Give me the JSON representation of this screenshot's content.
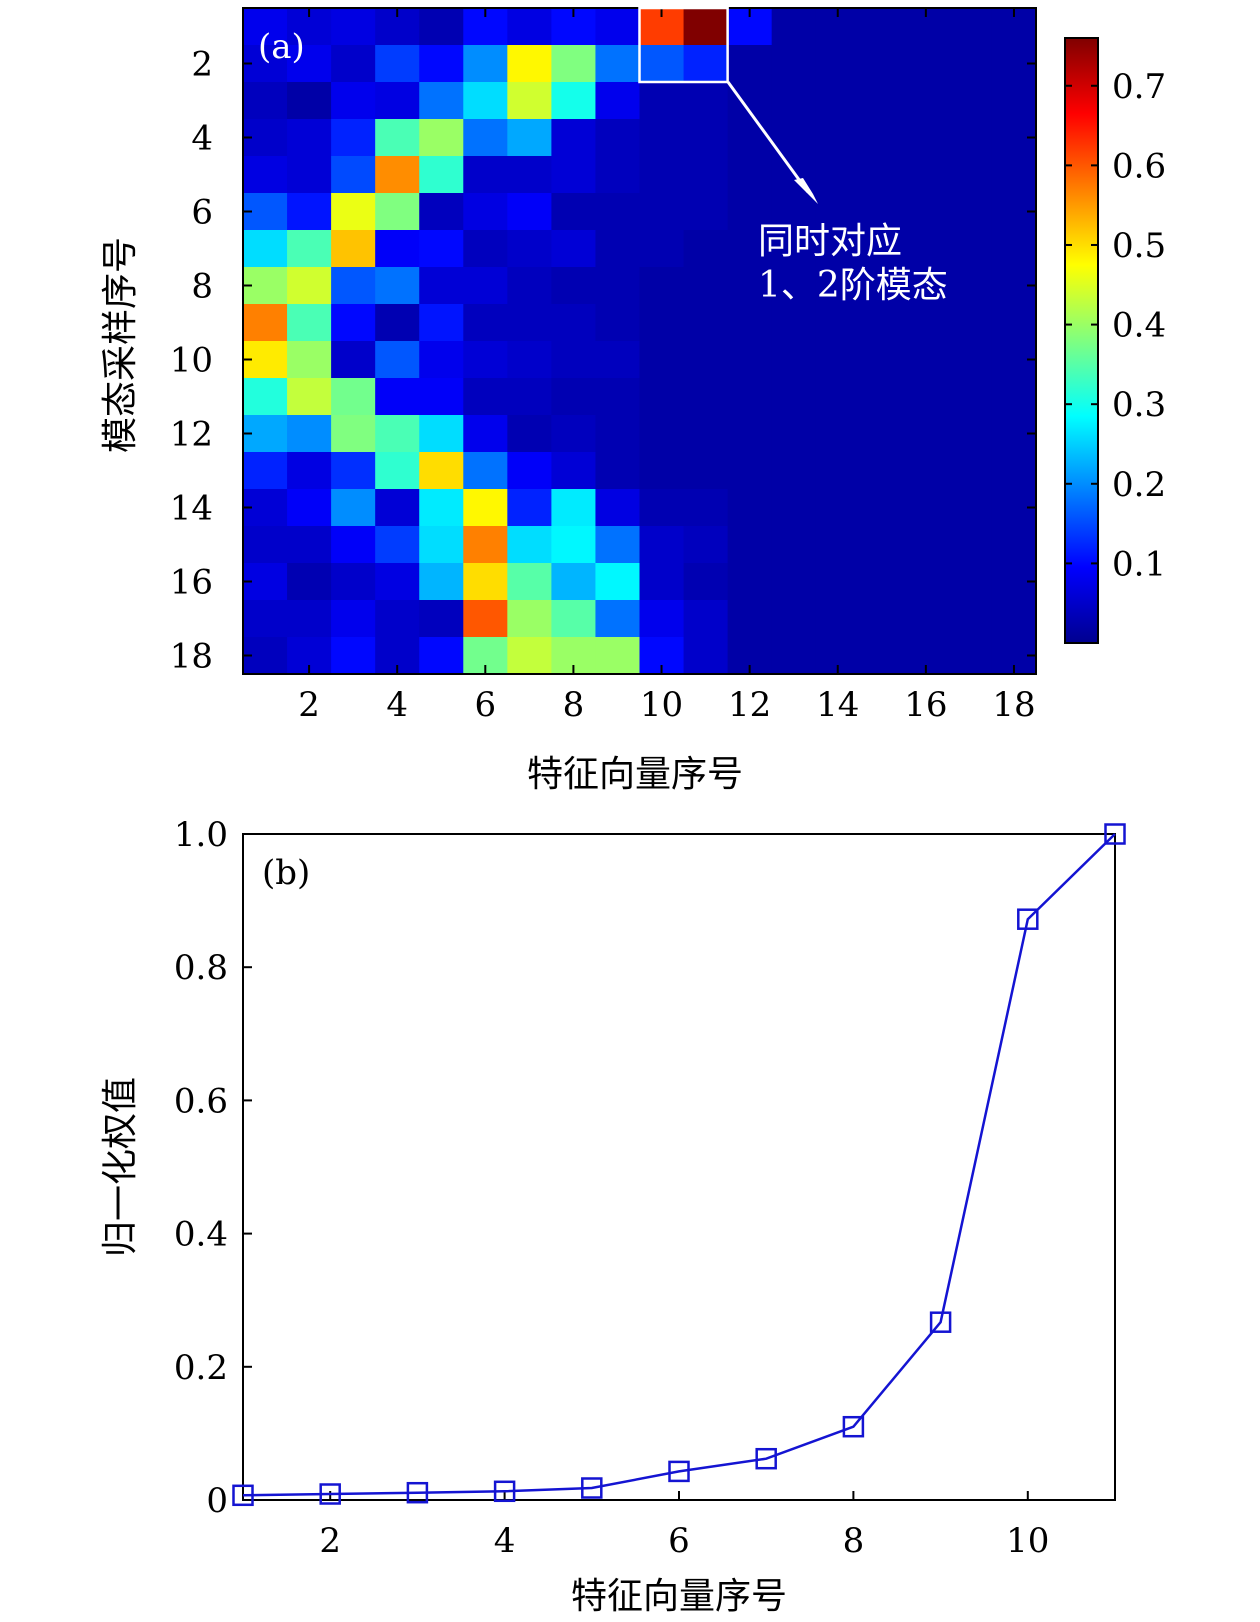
{
  "chart_data": [
    {
      "type": "heatmap",
      "panel_label": "(a)",
      "xlabel": "特征向量序号",
      "ylabel": "模态采样序号",
      "x_ticks": [
        "2",
        "4",
        "6",
        "8",
        "10",
        "12",
        "14",
        "16",
        "18"
      ],
      "y_ticks": [
        "2",
        "4",
        "6",
        "8",
        "10",
        "12",
        "14",
        "16",
        "18"
      ],
      "n_cols": 18,
      "n_rows": 18,
      "colorbar_ticks": [
        "0.1",
        "0.2",
        "0.3",
        "0.4",
        "0.5",
        "0.6",
        "0.7"
      ],
      "colorbar_range": [
        0.0,
        0.76
      ],
      "colormap": [
        "#00008f",
        "#0000ff",
        "#00ffff",
        "#ffff00",
        "#ff0000",
        "#800000"
      ],
      "values": [
        [
          0.08,
          0.06,
          0.07,
          0.05,
          0.03,
          0.1,
          0.07,
          0.1,
          0.08,
          0.62,
          0.76,
          0.1,
          0.02,
          0.02,
          0.02,
          0.02,
          0.02,
          0.02
        ],
        [
          0.06,
          0.08,
          0.05,
          0.14,
          0.1,
          0.2,
          0.48,
          0.38,
          0.18,
          0.16,
          0.12,
          0.02,
          0.02,
          0.02,
          0.02,
          0.02,
          0.02,
          0.02
        ],
        [
          0.04,
          0.02,
          0.08,
          0.07,
          0.18,
          0.26,
          0.44,
          0.3,
          0.08,
          0.03,
          0.03,
          0.02,
          0.02,
          0.02,
          0.02,
          0.02,
          0.02,
          0.02
        ],
        [
          0.05,
          0.06,
          0.12,
          0.34,
          0.4,
          0.18,
          0.22,
          0.06,
          0.04,
          0.03,
          0.03,
          0.02,
          0.02,
          0.02,
          0.02,
          0.02,
          0.02,
          0.02
        ],
        [
          0.07,
          0.06,
          0.15,
          0.56,
          0.32,
          0.05,
          0.05,
          0.06,
          0.04,
          0.03,
          0.03,
          0.02,
          0.02,
          0.02,
          0.02,
          0.02,
          0.02,
          0.02
        ],
        [
          0.16,
          0.11,
          0.46,
          0.38,
          0.04,
          0.07,
          0.09,
          0.03,
          0.03,
          0.03,
          0.03,
          0.02,
          0.02,
          0.02,
          0.02,
          0.02,
          0.02,
          0.02
        ],
        [
          0.26,
          0.34,
          0.52,
          0.09,
          0.1,
          0.04,
          0.05,
          0.06,
          0.03,
          0.03,
          0.02,
          0.02,
          0.02,
          0.02,
          0.02,
          0.02,
          0.02,
          0.02
        ],
        [
          0.4,
          0.44,
          0.16,
          0.18,
          0.06,
          0.06,
          0.04,
          0.03,
          0.03,
          0.02,
          0.02,
          0.02,
          0.02,
          0.02,
          0.02,
          0.02,
          0.02,
          0.02
        ],
        [
          0.57,
          0.34,
          0.1,
          0.03,
          0.11,
          0.04,
          0.04,
          0.04,
          0.03,
          0.02,
          0.02,
          0.02,
          0.02,
          0.02,
          0.02,
          0.02,
          0.02,
          0.02
        ],
        [
          0.49,
          0.4,
          0.05,
          0.16,
          0.08,
          0.06,
          0.05,
          0.04,
          0.04,
          0.02,
          0.02,
          0.02,
          0.02,
          0.02,
          0.02,
          0.02,
          0.02,
          0.02
        ],
        [
          0.31,
          0.43,
          0.37,
          0.09,
          0.09,
          0.04,
          0.04,
          0.03,
          0.03,
          0.02,
          0.02,
          0.02,
          0.02,
          0.02,
          0.02,
          0.02,
          0.02,
          0.02
        ],
        [
          0.22,
          0.2,
          0.38,
          0.34,
          0.26,
          0.08,
          0.03,
          0.04,
          0.03,
          0.02,
          0.02,
          0.02,
          0.02,
          0.02,
          0.02,
          0.02,
          0.02,
          0.02
        ],
        [
          0.12,
          0.07,
          0.13,
          0.32,
          0.5,
          0.18,
          0.09,
          0.06,
          0.03,
          0.02,
          0.02,
          0.02,
          0.02,
          0.02,
          0.02,
          0.02,
          0.02,
          0.02
        ],
        [
          0.06,
          0.09,
          0.2,
          0.06,
          0.27,
          0.48,
          0.12,
          0.27,
          0.07,
          0.03,
          0.03,
          0.02,
          0.02,
          0.02,
          0.02,
          0.02,
          0.02,
          0.02
        ],
        [
          0.05,
          0.05,
          0.09,
          0.14,
          0.26,
          0.57,
          0.26,
          0.28,
          0.18,
          0.05,
          0.04,
          0.02,
          0.02,
          0.02,
          0.02,
          0.02,
          0.02,
          0.02
        ],
        [
          0.07,
          0.03,
          0.05,
          0.07,
          0.23,
          0.5,
          0.35,
          0.23,
          0.28,
          0.05,
          0.03,
          0.02,
          0.02,
          0.02,
          0.02,
          0.02,
          0.02,
          0.02
        ],
        [
          0.05,
          0.05,
          0.08,
          0.05,
          0.04,
          0.6,
          0.4,
          0.35,
          0.18,
          0.08,
          0.05,
          0.02,
          0.02,
          0.02,
          0.02,
          0.02,
          0.02,
          0.02
        ],
        [
          0.04,
          0.06,
          0.1,
          0.05,
          0.1,
          0.37,
          0.43,
          0.4,
          0.4,
          0.1,
          0.05,
          0.02,
          0.02,
          0.02,
          0.02,
          0.02,
          0.02,
          0.02
        ]
      ],
      "annotation": {
        "lines": [
          "同时对应",
          "1、2阶模态"
        ],
        "highlight_cols": [
          10,
          11
        ],
        "highlight_rows": [
          1,
          2
        ]
      }
    },
    {
      "type": "line",
      "panel_label": "(b)",
      "xlabel": "特征向量序号",
      "ylabel": "归一化权值",
      "x": [
        1,
        2,
        3,
        4,
        5,
        6,
        7,
        8,
        9,
        10,
        11
      ],
      "y": [
        0.007,
        0.009,
        0.011,
        0.013,
        0.018,
        0.043,
        0.062,
        0.11,
        0.267,
        0.872,
        1.0
      ],
      "xlim": [
        1,
        11
      ],
      "ylim": [
        0,
        1.0
      ],
      "x_ticks": [
        "2",
        "4",
        "6",
        "8",
        "10"
      ],
      "y_ticks": [
        "0",
        "0.2",
        "0.4",
        "0.6",
        "0.8",
        "1.0"
      ],
      "line_color": "#1414d2",
      "marker": "square-open"
    }
  ]
}
